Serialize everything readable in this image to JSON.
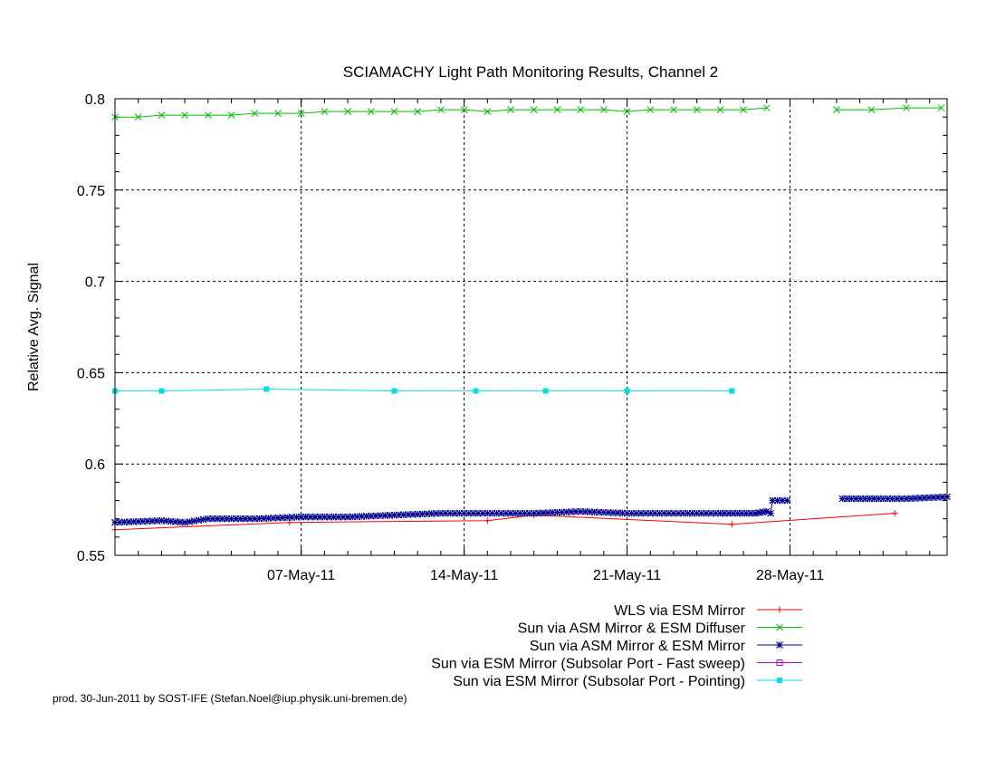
{
  "footer": "prod. 30-Jun-2011 by SOST-IFE (Stefan.Noel@iup.physik.uni-bremen.de)",
  "chart_data": {
    "type": "line",
    "title": "SCIAMACHY Light Path Monitoring Results, Channel 2",
    "xlabel": "",
    "ylabel": "Relative Avg. Signal",
    "x_unit": "date",
    "xlim": [
      "2011-04-29T00:00",
      "2011-06-03T18:00"
    ],
    "ylim": [
      0.55,
      0.8
    ],
    "x_ticks": [
      {
        "date": "2011-05-07",
        "label": "07-May-11"
      },
      {
        "date": "2011-05-14",
        "label": "14-May-11"
      },
      {
        "date": "2011-05-21",
        "label": "21-May-11"
      },
      {
        "date": "2011-05-28",
        "label": "28-May-11"
      }
    ],
    "y_ticks": [
      0.55,
      0.6,
      0.65,
      0.7,
      0.75,
      0.8
    ],
    "y_tick_labels": [
      "0.55",
      "0.6",
      "0.65",
      "0.7",
      "0.75",
      "0.8"
    ],
    "grid": true,
    "legend_position": "bottom-right, below plot",
    "series": [
      {
        "name": "WLS via ESM Mirror",
        "color": "#ff0000",
        "marker": "plus",
        "points": [
          [
            "2011-04-29T00:00",
            0.564
          ],
          [
            "2011-05-06T12:00",
            0.568
          ],
          [
            "2011-05-15T00:00",
            0.569
          ],
          [
            "2011-05-17T00:00",
            0.572
          ],
          [
            "2011-05-25T12:00",
            0.567
          ],
          [
            "2011-06-01T12:00",
            0.573
          ]
        ]
      },
      {
        "name": "Sun via ASM Mirror & ESM Diffuser",
        "color": "#00c000",
        "marker": "cross",
        "points": [
          [
            "2011-04-29T00:00",
            0.79
          ],
          [
            "2011-04-30T00:00",
            0.79
          ],
          [
            "2011-05-01T00:00",
            0.791
          ],
          [
            "2011-05-02T00:00",
            0.791
          ],
          [
            "2011-05-03T00:00",
            0.791
          ],
          [
            "2011-05-04T00:00",
            0.791
          ],
          [
            "2011-05-05T00:00",
            0.792
          ],
          [
            "2011-05-06T00:00",
            0.792
          ],
          [
            "2011-05-07T00:00",
            0.792
          ],
          [
            "2011-05-08T00:00",
            0.793
          ],
          [
            "2011-05-09T00:00",
            0.793
          ],
          [
            "2011-05-10T00:00",
            0.793
          ],
          [
            "2011-05-11T00:00",
            0.793
          ],
          [
            "2011-05-12T00:00",
            0.793
          ],
          [
            "2011-05-13T00:00",
            0.794
          ],
          [
            "2011-05-14T00:00",
            0.794
          ],
          [
            "2011-05-15T00:00",
            0.793
          ],
          [
            "2011-05-16T00:00",
            0.794
          ],
          [
            "2011-05-17T00:00",
            0.794
          ],
          [
            "2011-05-18T00:00",
            0.794
          ],
          [
            "2011-05-19T00:00",
            0.794
          ],
          [
            "2011-05-20T00:00",
            0.794
          ],
          [
            "2011-05-21T00:00",
            0.793
          ],
          [
            "2011-05-22T00:00",
            0.794
          ],
          [
            "2011-05-23T00:00",
            0.794
          ],
          [
            "2011-05-24T00:00",
            0.794
          ],
          [
            "2011-05-25T00:00",
            0.794
          ],
          [
            "2011-05-26T00:00",
            0.794
          ],
          [
            "2011-05-27T00:00",
            0.795
          ],
          null,
          [
            "2011-05-30T00:00",
            0.794
          ],
          [
            "2011-05-31T12:00",
            0.794
          ],
          [
            "2011-06-02T00:00",
            0.795
          ],
          [
            "2011-06-03T12:00",
            0.795
          ]
        ]
      },
      {
        "name": "Sun via ASM Mirror & ESM Mirror",
        "color": "#000090",
        "marker": "star",
        "dense": true,
        "points": [
          [
            "2011-04-29T00:00",
            0.568
          ],
          [
            "2011-05-01T00:00",
            0.569
          ],
          [
            "2011-05-02T00:00",
            0.568
          ],
          [
            "2011-05-03T00:00",
            0.57
          ],
          [
            "2011-05-05T00:00",
            0.57
          ],
          [
            "2011-05-07T00:00",
            0.571
          ],
          [
            "2011-05-09T00:00",
            0.571
          ],
          [
            "2011-05-11T00:00",
            0.572
          ],
          [
            "2011-05-13T00:00",
            0.573
          ],
          [
            "2011-05-15T00:00",
            0.573
          ],
          [
            "2011-05-17T00:00",
            0.573
          ],
          [
            "2011-05-19T00:00",
            0.574
          ],
          [
            "2011-05-21T00:00",
            0.573
          ],
          [
            "2011-05-23T00:00",
            0.573
          ],
          [
            "2011-05-25T00:00",
            0.573
          ],
          [
            "2011-05-26T12:00",
            0.573
          ],
          [
            "2011-05-27T00:00",
            0.574
          ],
          [
            "2011-05-27T04:00",
            0.573
          ],
          [
            "2011-05-27T06:00",
            0.58
          ],
          [
            "2011-05-27T21:00",
            0.58
          ],
          null,
          [
            "2011-05-30T06:00",
            0.581
          ],
          [
            "2011-06-01T00:00",
            0.581
          ],
          [
            "2011-06-02T00:00",
            0.581
          ],
          [
            "2011-06-03T18:00",
            0.582
          ]
        ]
      },
      {
        "name": "Sun via ESM Mirror (Subsolar Port - Fast sweep)",
        "color": "#c000c0",
        "marker": "square-open",
        "points": []
      },
      {
        "name": "Sun via ESM Mirror (Subsolar Port - Pointing)",
        "color": "#00e0e0",
        "marker": "square-filled",
        "points": [
          [
            "2011-04-29T00:00",
            0.64
          ],
          [
            "2011-05-01T00:00",
            0.64
          ],
          [
            "2011-05-05T12:00",
            0.641
          ],
          [
            "2011-05-11T00:00",
            0.64
          ],
          [
            "2011-05-14T12:00",
            0.64
          ],
          [
            "2011-05-17T12:00",
            0.64
          ],
          [
            "2011-05-21T00:00",
            0.64
          ],
          [
            "2011-05-25T12:00",
            0.64
          ]
        ]
      }
    ]
  }
}
